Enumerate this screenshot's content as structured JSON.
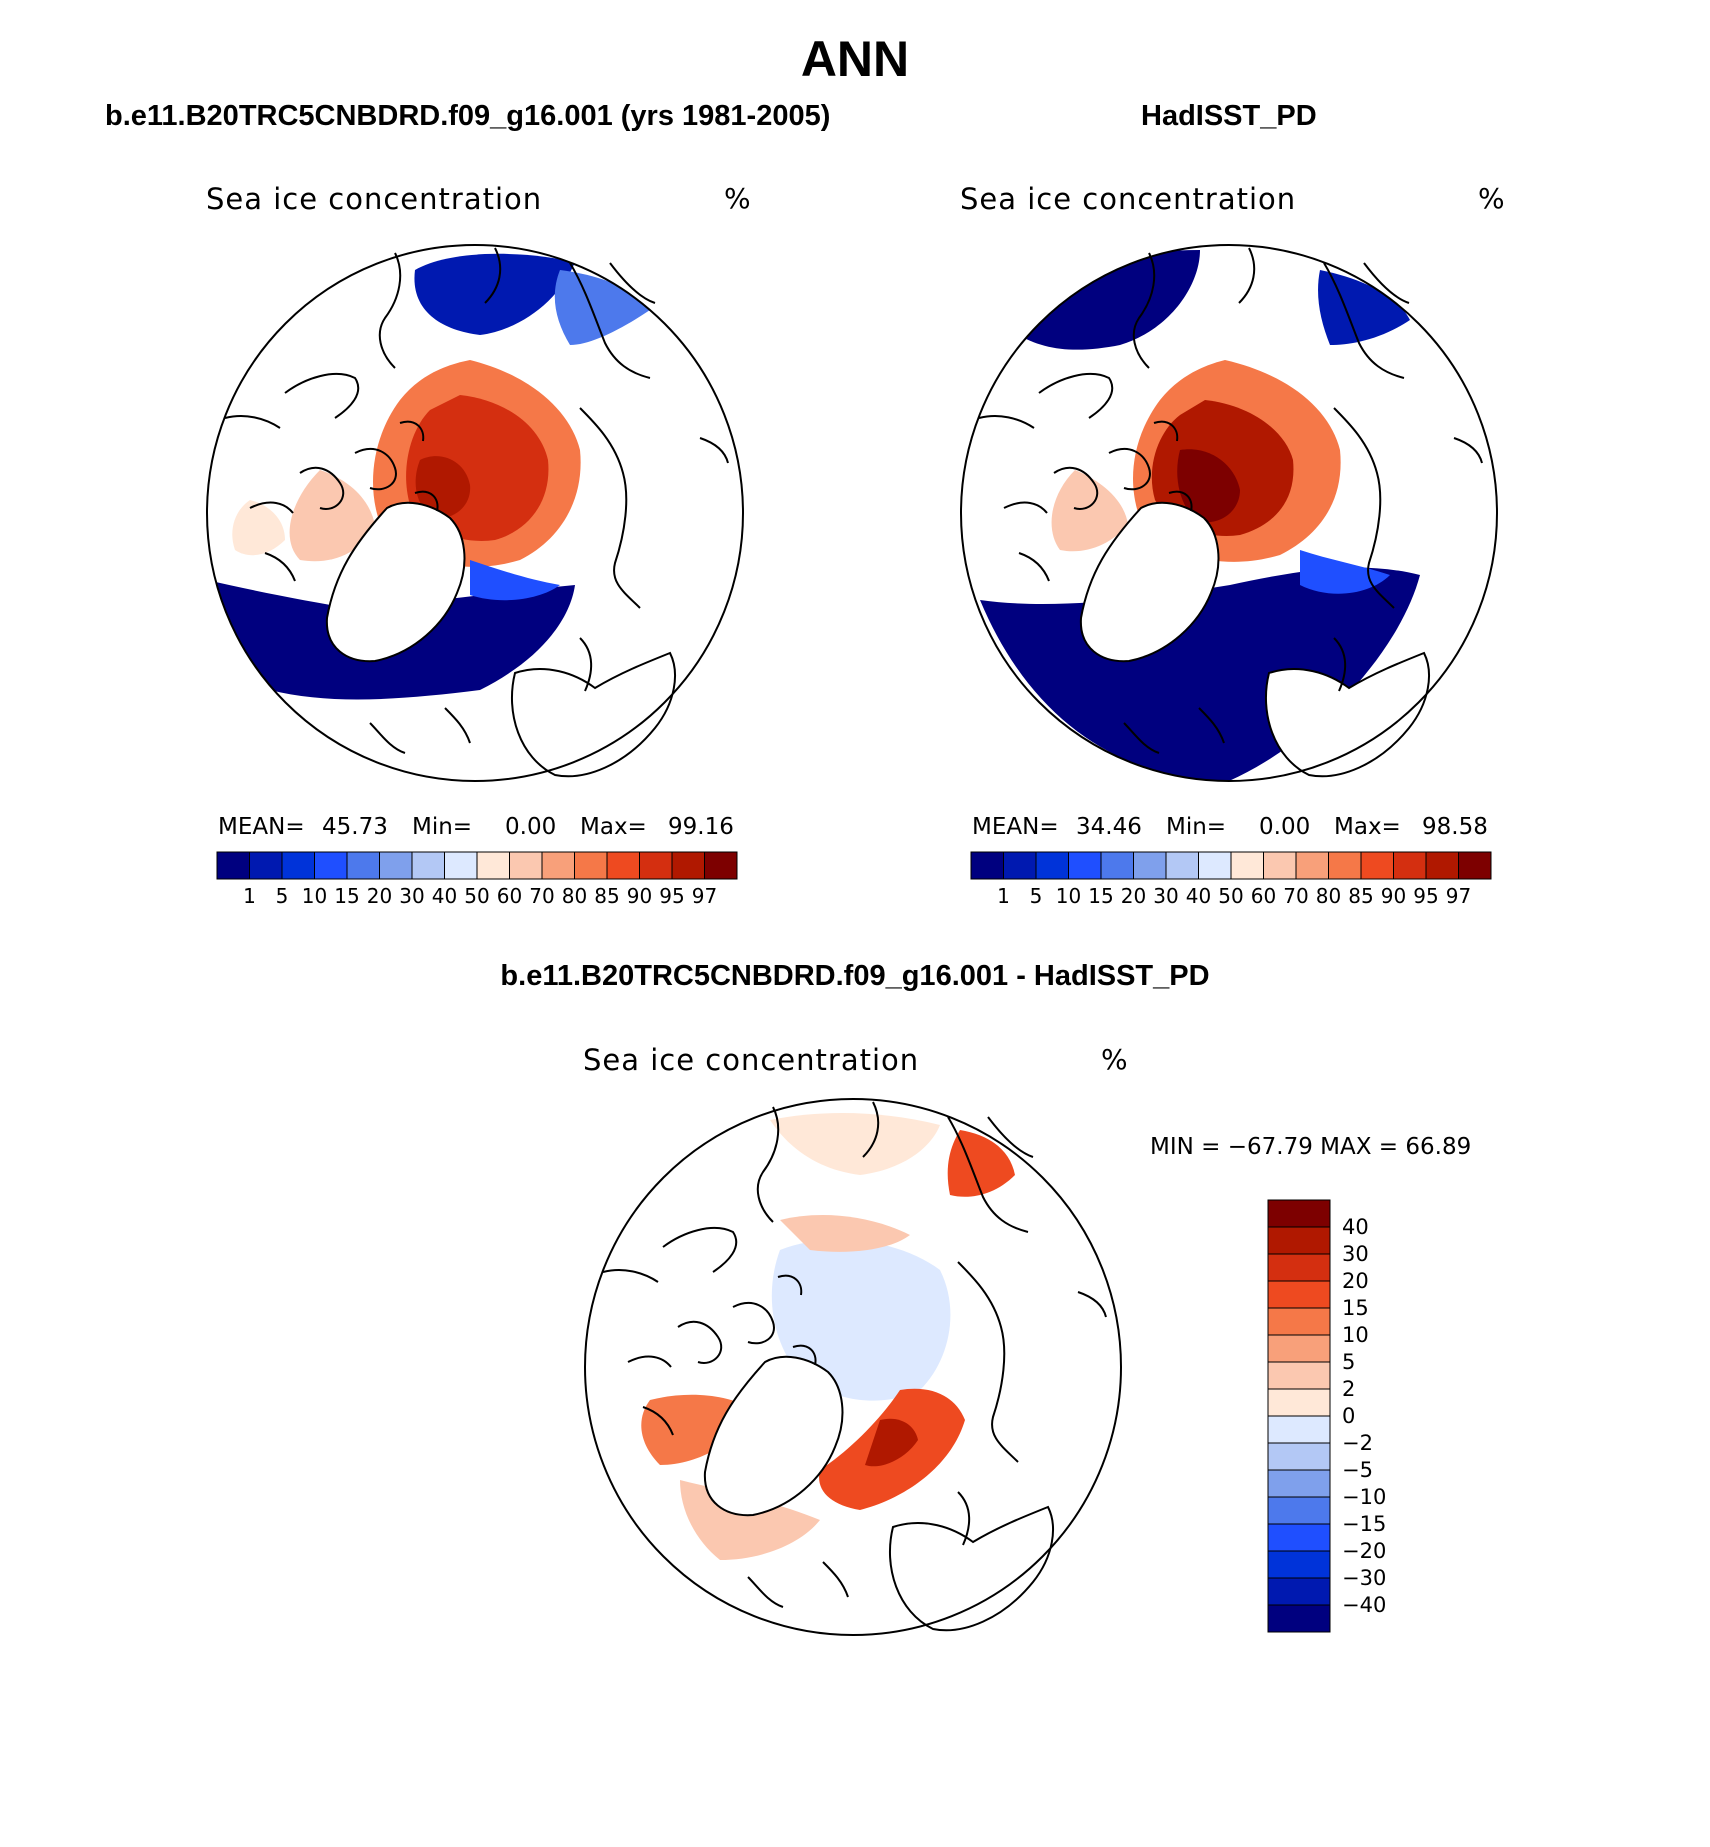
{
  "page_title": "ANN",
  "colors": {
    "concentration_palette": [
      "#00007f",
      "#0019b0",
      "#0033d9",
      "#1f4fff",
      "#4d79ec",
      "#7fa0ec",
      "#b3c8f5",
      "#dde9ff",
      "#ffe8d8",
      "#fbc8b0",
      "#f8a07a",
      "#f57848",
      "#ee4a20",
      "#d42f10",
      "#b01800",
      "#7d0000"
    ],
    "difference_palette": [
      "#00007f",
      "#0019b0",
      "#0033d9",
      "#1f4fff",
      "#4d79ec",
      "#7fa0ec",
      "#b3c8f5",
      "#dde9ff",
      "#ffe8d8",
      "#fbc8b0",
      "#f8a07a",
      "#f57848",
      "#ee4a20",
      "#d42f10",
      "#b01800",
      "#7d0000"
    ],
    "land_outline": "#000000"
  },
  "panels": {
    "model": {
      "title": "b.e11.B20TRC5CNBDRD.f09_g16.001 (yrs 1981-2005)",
      "variable": "Sea ice concentration",
      "units": "%",
      "mean_label": "MEAN=",
      "mean_value": "45.73",
      "min_label": "Min=",
      "min_value": "0.00",
      "max_label": "Max=",
      "max_value": "99.16"
    },
    "obs": {
      "title": "HadISST_PD",
      "variable": "Sea ice concentration",
      "units": "%",
      "mean_label": "MEAN=",
      "mean_value": "34.46",
      "min_label": "Min=",
      "min_value": "0.00",
      "max_label": "Max=",
      "max_value": "98.58"
    },
    "diff": {
      "title": "b.e11.B20TRC5CNBDRD.f09_g16.001 - HadISST_PD",
      "variable": "Sea ice concentration",
      "units": "%",
      "minmax_text": "MIN = −67.79 MAX =   66.89"
    }
  },
  "concentration_levels": [
    "1",
    "5",
    "10",
    "15",
    "20",
    "30",
    "40",
    "50",
    "60",
    "70",
    "80",
    "85",
    "90",
    "95",
    "97"
  ],
  "difference_levels": [
    "40",
    "30",
    "20",
    "15",
    "10",
    "5",
    "2",
    "0",
    "−2",
    "−5",
    "−10",
    "−15",
    "−20",
    "−30",
    "−40"
  ]
}
